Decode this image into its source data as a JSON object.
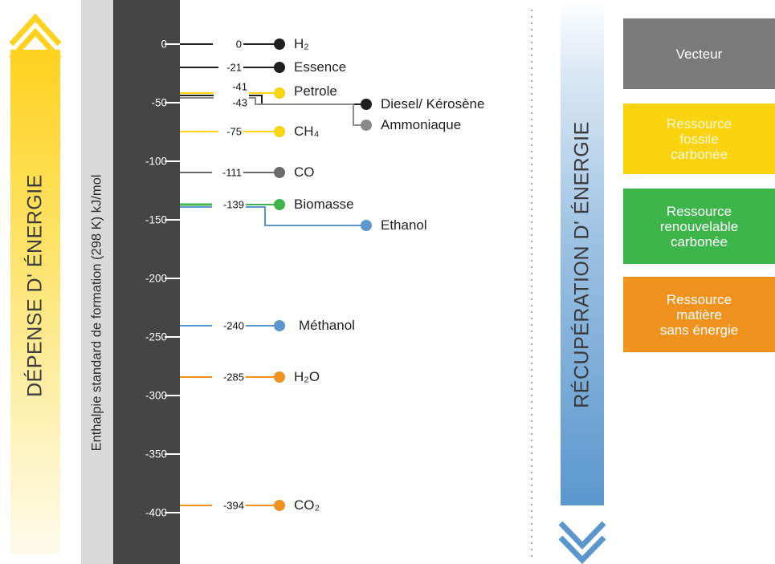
{
  "left_arrow": {
    "label": "DÉPENSE D' ÉNERGIE",
    "color": "#ffd21f"
  },
  "right_arrow": {
    "label": "RÉCUPÉRATION D' ÉNERGIE",
    "color": "#5b97cd"
  },
  "axis": {
    "title": "Enthalpie standard de formation (298 K) kJ/mol",
    "ticks": [
      "0",
      "-50",
      "-100",
      "-150",
      "-200",
      "-250",
      "-300",
      "-350",
      "-400"
    ]
  },
  "compounds": [
    {
      "name": "H₂",
      "value": "-0",
      "display_value": "0",
      "category": "vecteur"
    },
    {
      "name": "Essence",
      "value": "-21",
      "display_value": "-21",
      "category": "vecteur"
    },
    {
      "name": "Petrole",
      "value": "-41",
      "display_value": "-41",
      "category": "fossile"
    },
    {
      "name": "Diesel/ Kérosène",
      "value": "-43",
      "display_value": "-43",
      "category": "vecteur"
    },
    {
      "name": "Ammoniaque",
      "value": "-46",
      "display_value": "",
      "category": "vecteur-light"
    },
    {
      "name": "CH₄",
      "value": "-75",
      "display_value": "-75",
      "category": "fossile"
    },
    {
      "name": "CO",
      "value": "-111",
      "display_value": "-111",
      "category": "vecteur-dark"
    },
    {
      "name": "Biomasse",
      "value": "-139",
      "display_value": "-139",
      "category": "renouvelable"
    },
    {
      "name": "Ethanol",
      "value": "-154",
      "display_value": "",
      "category": "blue"
    },
    {
      "name": "Méthanol",
      "value": "-240",
      "display_value": "-240",
      "category": "blue"
    },
    {
      "name": "H₂O",
      "value": "-285",
      "display_value": "-285",
      "category": "matiere"
    },
    {
      "name": "CO₂",
      "value": "-394",
      "display_value": "-394",
      "category": "matiere"
    }
  ],
  "legend": [
    {
      "label": "Vecteur",
      "color": "#7a7a7a"
    },
    {
      "label": "Ressource\nfossile\ncarbonée",
      "color": "#f8d30e"
    },
    {
      "label": "Ressource\nrenouvelable\ncarbonée",
      "color": "#3db54a"
    },
    {
      "label": "Ressource\nmatière\nsans énergie",
      "color": "#f0931e"
    }
  ],
  "colors": {
    "vecteur": "#1f1f1f",
    "vecteur-light": "#8a8a8a",
    "vecteur-dark": "#6b6b6b",
    "fossile": "#f8d30e",
    "renouvelable": "#3db54a",
    "blue": "#5b97cd",
    "matiere": "#f0931e"
  }
}
